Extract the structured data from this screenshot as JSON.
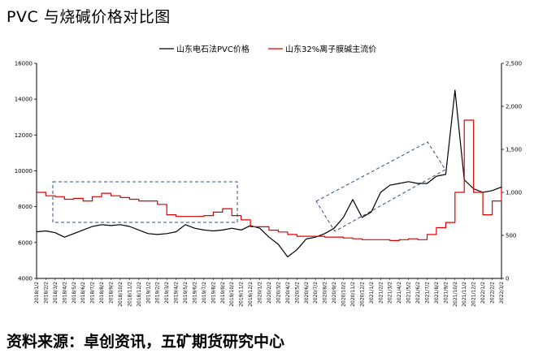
{
  "title": "PVC 与烧碱价格对比图",
  "source": "资料来源：卓创资讯，五矿期货研究中心",
  "chart_data": {
    "type": "line",
    "title": "PVC 与烧碱价格对比图",
    "legend_placement": "top-right",
    "grid": false,
    "y_left": {
      "min": 4000,
      "max": 16000,
      "ticks": [
        4000,
        6000,
        8000,
        10000,
        12000,
        14000,
        16000
      ]
    },
    "y_right": {
      "min": 0,
      "max": 2500,
      "ticks": [
        0,
        500,
        1000,
        1500,
        2000,
        2500
      ]
    },
    "x_labels": [
      "2018/1/2",
      "2018/2/2",
      "2018/3/2",
      "2018/4/2",
      "2018/5/2",
      "2018/6/2",
      "2018/7/2",
      "2018/8/2",
      "2018/9/2",
      "2018/10/2",
      "2018/11/2",
      "2018/12/2",
      "2019/1/2",
      "2019/2/2",
      "2019/3/2",
      "2019/4/2",
      "2019/5/2",
      "2019/6/2",
      "2019/7/2",
      "2019/8/2",
      "2019/9/2",
      "2019/10/2",
      "2019/11/2",
      "2019/12/2",
      "2020/1/2",
      "2020/2/2",
      "2020/3/2",
      "2020/4/2",
      "2020/5/2",
      "2020/6/2",
      "2020/7/2",
      "2020/8/2",
      "2020/9/2",
      "2020/10/2",
      "2020/11/2",
      "2020/12/2",
      "2021/1/2",
      "2021/2/2",
      "2021/3/2",
      "2021/4/2",
      "2021/5/2",
      "2021/6/2",
      "2021/7/2",
      "2021/8/2",
      "2021/9/2",
      "2021/10/2",
      "2021/11/2",
      "2021/12/2",
      "2022/1/2",
      "2022/2/2",
      "2022/3/2"
    ],
    "series": [
      {
        "name": "山东电石法PVC价格",
        "axis": "left",
        "color": "#000000",
        "values": [
          6600,
          6650,
          6550,
          6300,
          6500,
          6700,
          6900,
          7000,
          6950,
          7000,
          6900,
          6700,
          6500,
          6450,
          6500,
          6600,
          7000,
          6800,
          6700,
          6650,
          6700,
          6800,
          6700,
          6950,
          6800,
          6300,
          5900,
          5200,
          5600,
          6200,
          6300,
          6500,
          6800,
          7400,
          8400,
          7400,
          7700,
          8800,
          9200,
          9300,
          9400,
          9300,
          9300,
          9700,
          9800,
          14500,
          9500,
          9000,
          8800,
          8900,
          9100
        ]
      },
      {
        "name": "山东32%离子膜碱主流价",
        "axis": "right",
        "color": "#e00000",
        "values": [
          1000,
          960,
          950,
          920,
          930,
          900,
          950,
          990,
          960,
          940,
          920,
          900,
          900,
          860,
          740,
          720,
          720,
          720,
          730,
          770,
          810,
          730,
          680,
          600,
          600,
          560,
          540,
          510,
          490,
          490,
          490,
          480,
          480,
          470,
          460,
          450,
          450,
          450,
          440,
          450,
          460,
          450,
          510,
          590,
          650,
          1000,
          1840,
          1000,
          740,
          900,
          1050
        ]
      }
    ]
  }
}
